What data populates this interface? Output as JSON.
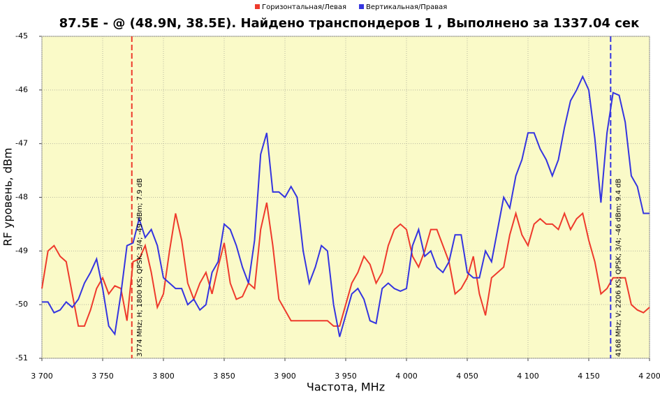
{
  "chart_data": {
    "type": "line",
    "title": "87.5E -  @  (48.9N, 38.5E). Найдено транспондеров 1 , Выполнено за 1337.04 сек",
    "x_label": "Частота, MHz",
    "y_label": "RF уровень, dBm",
    "xlim": [
      3700,
      4200
    ],
    "ylim": [
      -51,
      -45
    ],
    "xticks": [
      {
        "value": 3700,
        "label": "3 700"
      },
      {
        "value": 3750,
        "label": "3 750"
      },
      {
        "value": 3800,
        "label": "3 800"
      },
      {
        "value": 3850,
        "label": "3 850"
      },
      {
        "value": 3900,
        "label": "3 900"
      },
      {
        "value": 3950,
        "label": "3 950"
      },
      {
        "value": 4000,
        "label": "4 000"
      },
      {
        "value": 4050,
        "label": "4 050"
      },
      {
        "value": 4100,
        "label": "4 100"
      },
      {
        "value": 4150,
        "label": "4 150"
      },
      {
        "value": 4200,
        "label": "4 200"
      }
    ],
    "yticks": [
      -45,
      -46,
      -47,
      -48,
      -49,
      -50,
      -51
    ],
    "grid": true,
    "x": [
      3700,
      3705,
      3710,
      3715,
      3720,
      3725,
      3730,
      3735,
      3740,
      3745,
      3750,
      3755,
      3760,
      3765,
      3770,
      3775,
      3780,
      3785,
      3790,
      3795,
      3800,
      3805,
      3810,
      3815,
      3820,
      3825,
      3830,
      3835,
      3840,
      3845,
      3850,
      3855,
      3860,
      3865,
      3870,
      3875,
      3880,
      3885,
      3890,
      3895,
      3900,
      3905,
      3910,
      3915,
      3920,
      3925,
      3930,
      3935,
      3940,
      3945,
      3950,
      3955,
      3960,
      3965,
      3970,
      3975,
      3980,
      3985,
      3990,
      3995,
      4000,
      4005,
      4010,
      4015,
      4020,
      4025,
      4030,
      4035,
      4040,
      4045,
      4050,
      4055,
      4060,
      4065,
      4070,
      4075,
      4080,
      4085,
      4090,
      4095,
      4100,
      4105,
      4110,
      4115,
      4120,
      4125,
      4130,
      4135,
      4140,
      4145,
      4150,
      4155,
      4160,
      4165,
      4170,
      4175,
      4180,
      4185,
      4190,
      4195,
      4200
    ],
    "series": [
      {
        "name": "Горизонтальная/Левая",
        "color": "#ee3a2c",
        "values": [
          -49.7,
          -49.0,
          -48.9,
          -49.1,
          -49.2,
          -49.8,
          -50.4,
          -50.4,
          -50.1,
          -49.7,
          -49.5,
          -49.8,
          -49.65,
          -49.7,
          -50.3,
          -49.2,
          -49.15,
          -48.9,
          -49.4,
          -50.05,
          -49.8,
          -49.0,
          -48.3,
          -48.8,
          -49.6,
          -49.9,
          -49.6,
          -49.4,
          -49.8,
          -49.3,
          -48.85,
          -49.6,
          -49.9,
          -49.85,
          -49.6,
          -49.7,
          -48.6,
          -48.1,
          -48.9,
          -49.9,
          -50.1,
          -50.3,
          -50.3,
          -50.3,
          -50.3,
          -50.3,
          -50.3,
          -50.3,
          -50.4,
          -50.4,
          -50.0,
          -49.6,
          -49.4,
          -49.1,
          -49.25,
          -49.6,
          -49.4,
          -48.9,
          -48.6,
          -48.5,
          -48.6,
          -49.1,
          -49.3,
          -49.0,
          -48.6,
          -48.6,
          -48.9,
          -49.2,
          -49.8,
          -49.7,
          -49.5,
          -49.1,
          -49.8,
          -50.2,
          -49.5,
          -49.4,
          -49.3,
          -48.7,
          -48.3,
          -48.7,
          -48.9,
          -48.5,
          -48.4,
          -48.5,
          -48.5,
          -48.6,
          -48.3,
          -48.6,
          -48.4,
          -48.3,
          -48.8,
          -49.2,
          -49.8,
          -49.7,
          -49.5,
          -49.5,
          -49.5,
          -50.0,
          -50.1,
          -50.15,
          -50.05
        ]
      },
      {
        "name": "Вертикальная/Правая",
        "color": "#3434e0",
        "values": [
          -49.95,
          -49.95,
          -50.15,
          -50.1,
          -49.95,
          -50.05,
          -49.9,
          -49.6,
          -49.4,
          -49.15,
          -49.7,
          -50.4,
          -50.55,
          -49.8,
          -48.9,
          -48.85,
          -48.4,
          -48.75,
          -48.6,
          -48.9,
          -49.5,
          -49.6,
          -49.7,
          -49.7,
          -50.0,
          -49.9,
          -50.1,
          -50.0,
          -49.4,
          -49.2,
          -48.5,
          -48.6,
          -48.9,
          -49.3,
          -49.6,
          -48.8,
          -47.2,
          -46.8,
          -47.9,
          -47.9,
          -48.0,
          -47.8,
          -48.0,
          -49.0,
          -49.6,
          -49.3,
          -48.9,
          -49.0,
          -50.0,
          -50.6,
          -50.2,
          -49.8,
          -49.7,
          -49.9,
          -50.3,
          -50.35,
          -49.7,
          -49.6,
          -49.7,
          -49.75,
          -49.7,
          -48.9,
          -48.6,
          -49.1,
          -49.0,
          -49.3,
          -49.4,
          -49.2,
          -48.7,
          -48.7,
          -49.4,
          -49.5,
          -49.5,
          -49.0,
          -49.2,
          -48.6,
          -48.0,
          -48.2,
          -47.6,
          -47.3,
          -46.8,
          -46.8,
          -47.1,
          -47.3,
          -47.6,
          -47.3,
          -46.7,
          -46.2,
          -46.0,
          -45.75,
          -46.0,
          -46.9,
          -48.1,
          -46.8,
          -46.05,
          -46.1,
          -46.6,
          -47.6,
          -47.8,
          -48.3,
          -48.3
        ]
      }
    ],
    "markers": [
      {
        "x": 3774,
        "color": "#ee3a2c",
        "label": "3774 MHz; H; 1800 KS; QPSK; 3/4; -49 dBm; 7.9 dB"
      },
      {
        "x": 4168,
        "color": "#3434e0",
        "label": "4168 MHz; V; 2206 KS; QPSK; 3/4; -46 dBm; 9.4 dB"
      }
    ]
  }
}
